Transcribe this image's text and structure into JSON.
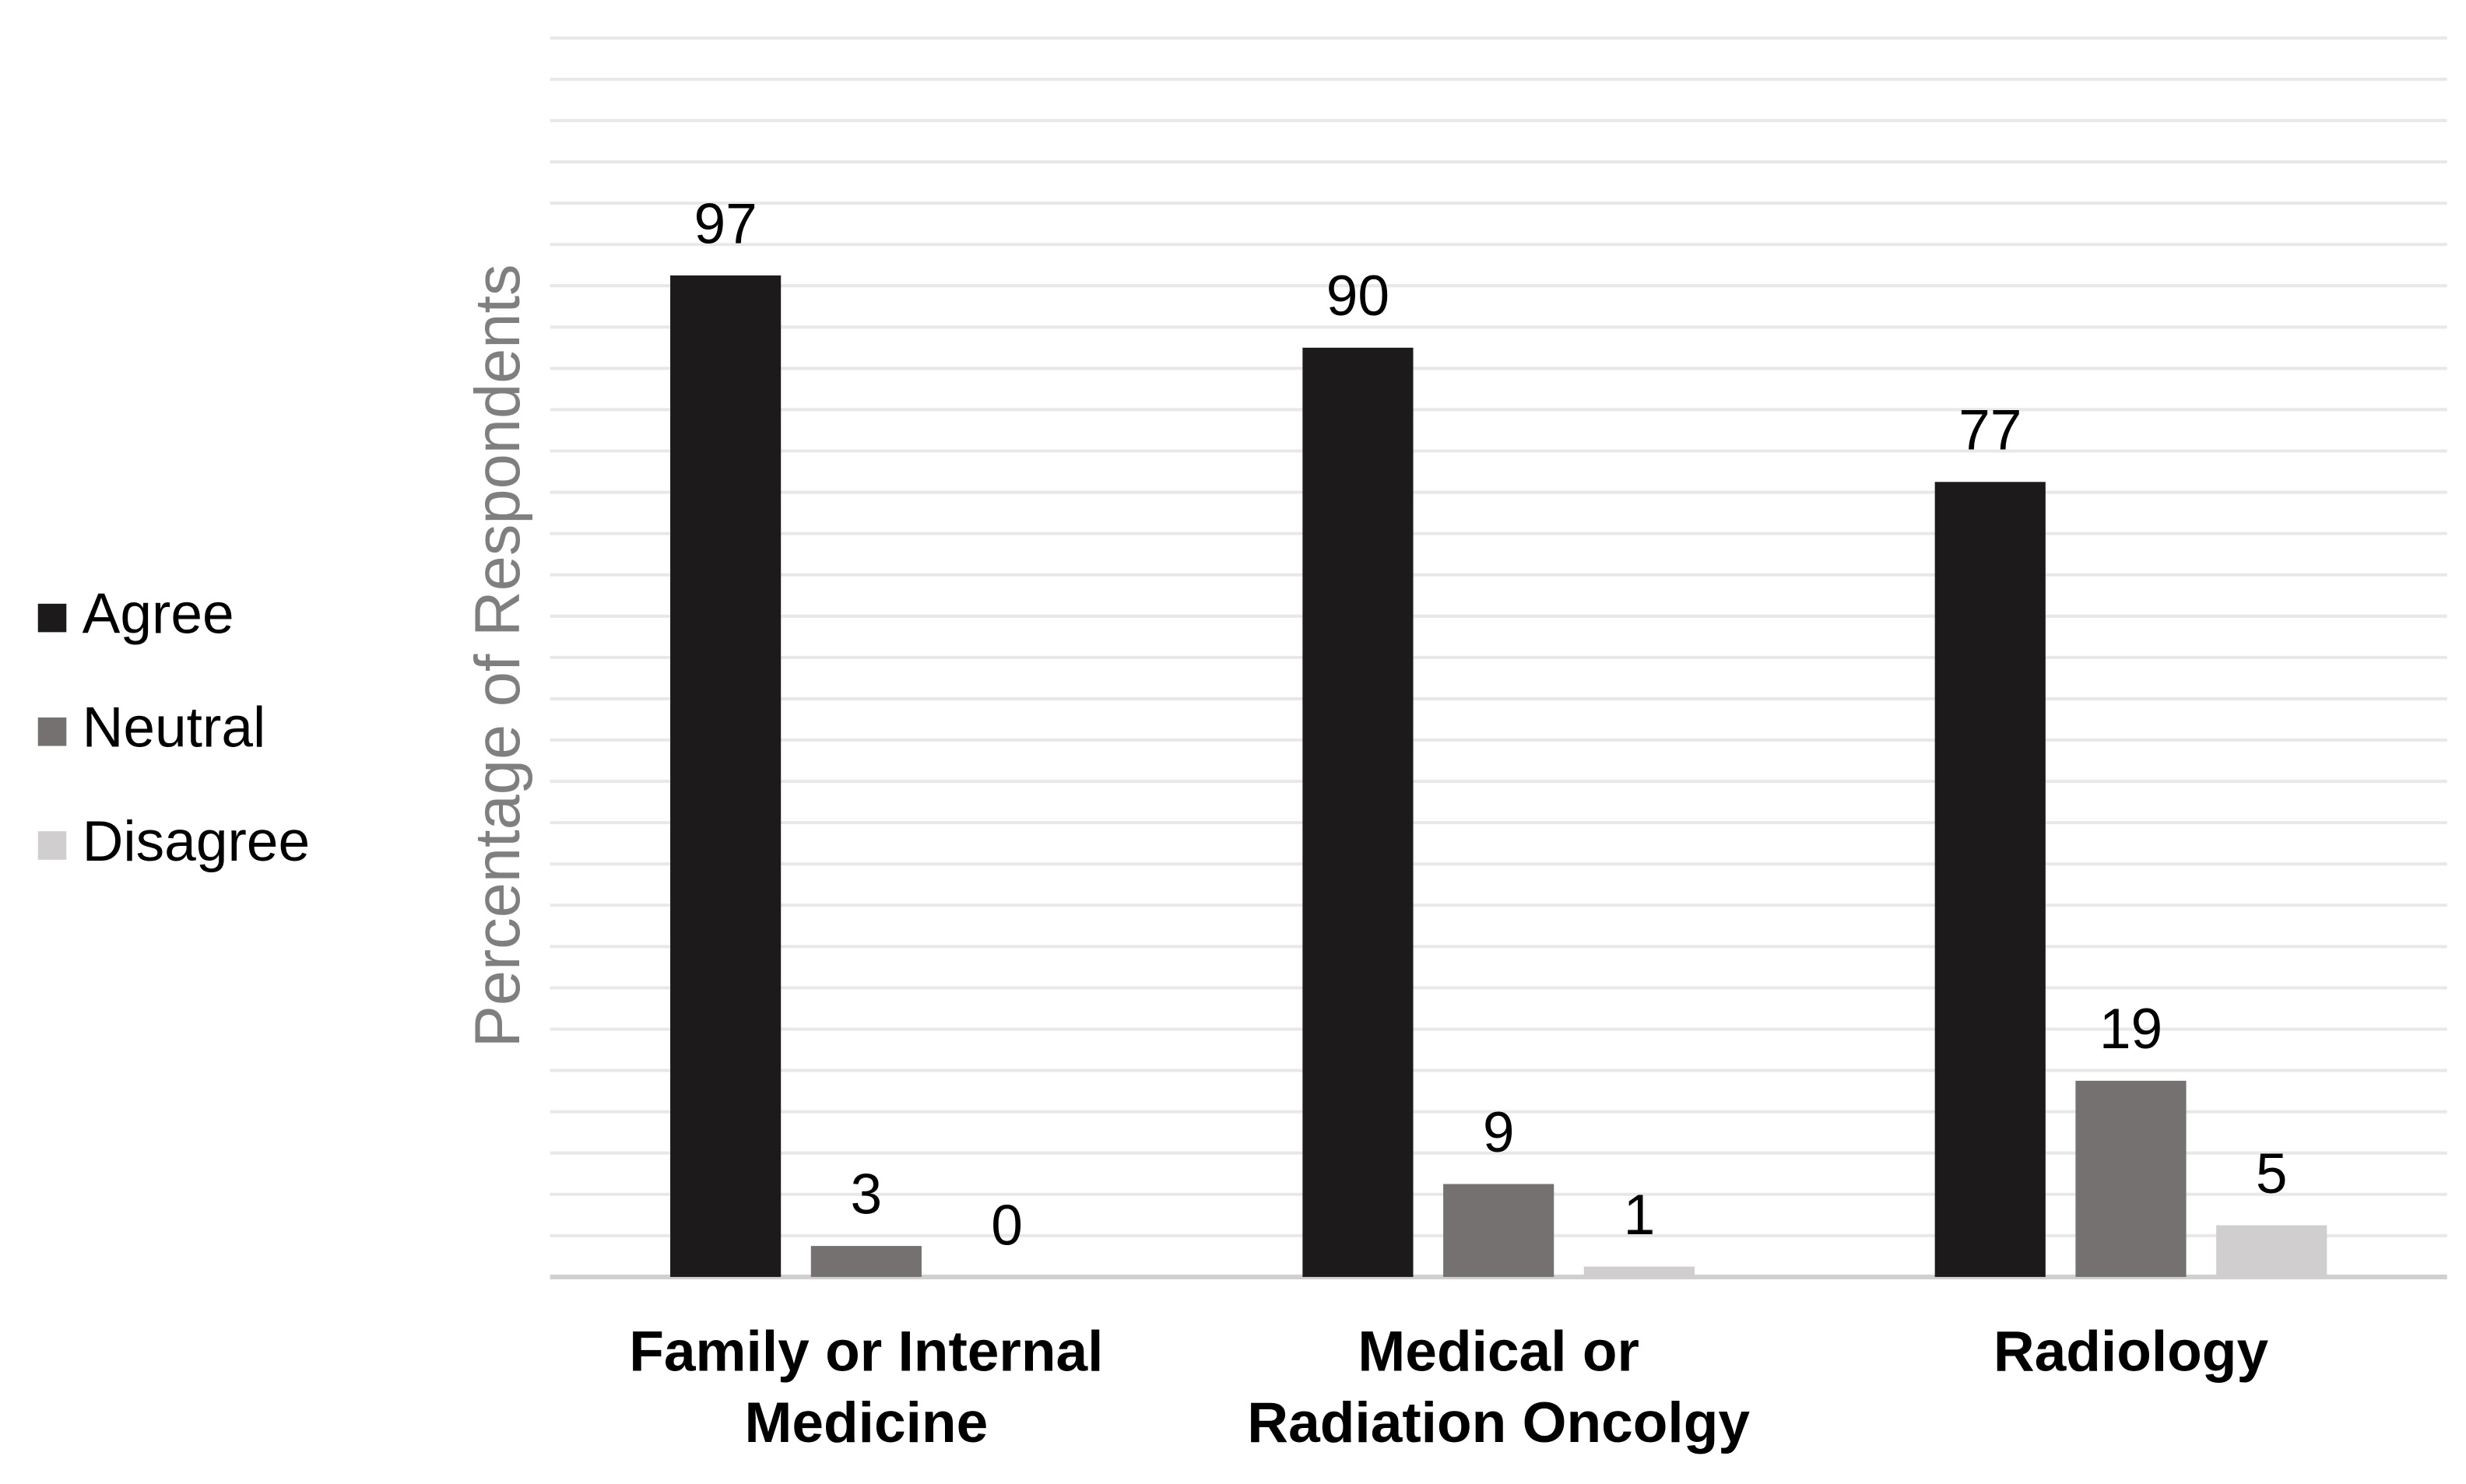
{
  "chart_data": {
    "type": "bar",
    "y_label": "Percentage of Respondents",
    "categories": [
      "Family or Internal Medicine",
      "Medical or Radiation Oncolgy",
      "Radiology"
    ],
    "series": [
      {
        "name": "Agree",
        "color": "#1c1a1a",
        "values": [
          97,
          90,
          77
        ]
      },
      {
        "name": "Neutral",
        "color": "#767171",
        "values": [
          3,
          9,
          19
        ]
      },
      {
        "name": "Disagree",
        "color": "#d0cece",
        "values": [
          0,
          1,
          5
        ]
      }
    ],
    "ylim": [
      0,
      120
    ],
    "ygrid": [
      0,
      4,
      8,
      12,
      16,
      20,
      24,
      28,
      32,
      36,
      40,
      44,
      48,
      52,
      56,
      60,
      64,
      68,
      72,
      76,
      80,
      84,
      88,
      92,
      96,
      100,
      104,
      108,
      112,
      116,
      120
    ],
    "grid": true,
    "legend": "left"
  }
}
